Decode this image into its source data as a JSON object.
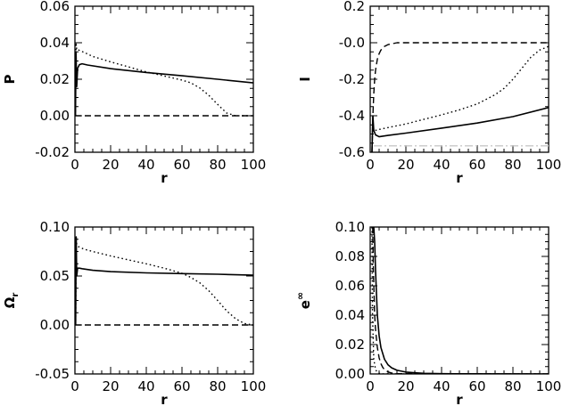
{
  "chart_data": [
    {
      "type": "line",
      "xlabel": "r",
      "ylabel": "P",
      "xlim": [
        0,
        100
      ],
      "ylim": [
        -0.02,
        0.06
      ],
      "xticks": [
        "0",
        "20",
        "40",
        "60",
        "80",
        "100"
      ],
      "yticks": [
        "-0.02",
        "0.00",
        "0.02",
        "0.04",
        "0.06"
      ],
      "grid": false,
      "series": [
        {
          "style": "solid",
          "x": [
            0.3,
            0.6,
            1.0,
            1.5,
            2.5,
            4,
            7,
            20,
            40,
            60,
            80,
            100
          ],
          "y": [
            0.0,
            0.035,
            0.016,
            0.026,
            0.028,
            0.0285,
            0.0278,
            0.0258,
            0.0237,
            0.0219,
            0.02,
            0.018
          ]
        },
        {
          "style": "dotted",
          "x": [
            0.3,
            0.6,
            1.0,
            2,
            5,
            10,
            20,
            30,
            40,
            50,
            60,
            65,
            70,
            75,
            80,
            85,
            90,
            100
          ],
          "y": [
            0.0,
            0.04,
            0.036,
            0.036,
            0.0348,
            0.0325,
            0.0295,
            0.0268,
            0.024,
            0.0218,
            0.0195,
            0.018,
            0.0152,
            0.0112,
            0.0062,
            0.0015,
            0.0,
            0.0
          ]
        },
        {
          "style": "dashed",
          "x": [
            0,
            100
          ],
          "y": [
            0.0,
            0.0
          ]
        }
      ]
    },
    {
      "type": "line",
      "xlabel": "r",
      "ylabel": "I",
      "xlim": [
        0,
        100
      ],
      "ylim": [
        -0.6,
        0.2
      ],
      "xticks": [
        "0",
        "20",
        "40",
        "60",
        "80",
        "100"
      ],
      "yticks": [
        "-0.6",
        "-0.4",
        "-0.2",
        "-0.0",
        "0.2"
      ],
      "grid": false,
      "series": [
        {
          "style": "solid",
          "x": [
            1.0,
            1.5,
            2,
            3,
            5,
            10,
            20,
            40,
            60,
            80,
            100
          ],
          "y": [
            -0.6,
            -0.4,
            -0.48,
            -0.505,
            -0.515,
            -0.508,
            -0.495,
            -0.468,
            -0.44,
            -0.405,
            -0.355
          ]
        },
        {
          "style": "dotted",
          "x": [
            1.2,
            2,
            3,
            5,
            10,
            20,
            30,
            40,
            50,
            60,
            65,
            70,
            75,
            80,
            85,
            90,
            95,
            100
          ],
          "y": [
            -0.45,
            -0.485,
            -0.48,
            -0.475,
            -0.465,
            -0.445,
            -0.42,
            -0.395,
            -0.368,
            -0.335,
            -0.31,
            -0.285,
            -0.25,
            -0.2,
            -0.14,
            -0.08,
            -0.04,
            -0.02
          ]
        },
        {
          "style": "dashed",
          "x": [
            1.0,
            1.5,
            2,
            2.5,
            3,
            4,
            5,
            6,
            8,
            10,
            15,
            20,
            30,
            50,
            100
          ],
          "y": [
            -0.6,
            -0.4,
            -0.28,
            -0.2,
            -0.15,
            -0.09,
            -0.06,
            -0.04,
            -0.02,
            -0.01,
            0.0,
            0.0,
            0.0,
            0.0,
            0.0
          ]
        },
        {
          "style": "dash-dot",
          "color": "#c8c8c8",
          "x": [
            2,
            100
          ],
          "y": [
            -0.565,
            -0.565
          ]
        }
      ]
    },
    {
      "type": "line",
      "xlabel": "r",
      "ylabel": "Ω",
      "ylabel_sub": "r",
      "xlim": [
        0,
        100
      ],
      "ylim": [
        -0.05,
        0.1
      ],
      "xticks": [
        "0",
        "20",
        "40",
        "60",
        "80",
        "100"
      ],
      "yticks": [
        "-0.05",
        "0.00",
        "0.05",
        "0.10"
      ],
      "grid": false,
      "series": [
        {
          "style": "solid",
          "x": [
            0.4,
            0.7,
            1.0,
            1.5,
            2.5,
            4,
            10,
            20,
            40,
            60,
            80,
            100
          ],
          "y": [
            0.0,
            0.09,
            0.05,
            0.058,
            0.058,
            0.0575,
            0.0558,
            0.0545,
            0.0532,
            0.0525,
            0.0518,
            0.0508
          ]
        },
        {
          "style": "dotted",
          "x": [
            0.4,
            0.7,
            1.0,
            2,
            5,
            10,
            20,
            30,
            40,
            50,
            60,
            65,
            70,
            75,
            80,
            85,
            90,
            95,
            100
          ],
          "y": [
            0.0,
            0.09,
            0.082,
            0.08,
            0.0775,
            0.075,
            0.0705,
            0.0665,
            0.0625,
            0.058,
            0.0528,
            0.0485,
            0.043,
            0.035,
            0.025,
            0.0145,
            0.0065,
            0.0015,
            0.0
          ]
        },
        {
          "style": "dashed",
          "x": [
            0,
            100
          ],
          "y": [
            0.0,
            0.0
          ]
        }
      ]
    },
    {
      "type": "line",
      "xlabel": "r",
      "ylabel": "e",
      "ylabel_sup": "∞",
      "xlim": [
        0,
        100
      ],
      "ylim": [
        0,
        0.1
      ],
      "xticks": [
        "0",
        "20",
        "40",
        "60",
        "80",
        "100"
      ],
      "yticks": [
        "0.00",
        "0.02",
        "0.04",
        "0.06",
        "0.08",
        "0.10"
      ],
      "grid": false,
      "series": [
        {
          "style": "solid",
          "x": [
            2.0,
            2.5,
            3,
            4,
            5,
            6,
            8,
            10,
            12,
            15,
            20,
            25,
            30,
            40,
            50,
            100
          ],
          "y": [
            0.1,
            0.09,
            0.07,
            0.04,
            0.026,
            0.018,
            0.01,
            0.0062,
            0.0042,
            0.0025,
            0.0013,
            0.0008,
            0.0004,
            0.0002,
            0.0001,
            0.0
          ]
        },
        {
          "style": "dashed",
          "x": [
            1.4,
            1.8,
            2.5,
            3,
            4,
            5,
            6,
            7,
            8,
            10,
            12,
            15,
            100
          ],
          "y": [
            0.1,
            0.07,
            0.04,
            0.03,
            0.018,
            0.011,
            0.007,
            0.0045,
            0.003,
            0.0014,
            0.0006,
            0.0002,
            0.0
          ]
        },
        {
          "style": "dotted",
          "x": [
            1.0,
            1.3,
            2,
            3,
            4,
            6,
            100
          ],
          "y": [
            0.1,
            0.04,
            0.01,
            0.003,
            0.001,
            0.0,
            0.0
          ]
        }
      ]
    }
  ]
}
